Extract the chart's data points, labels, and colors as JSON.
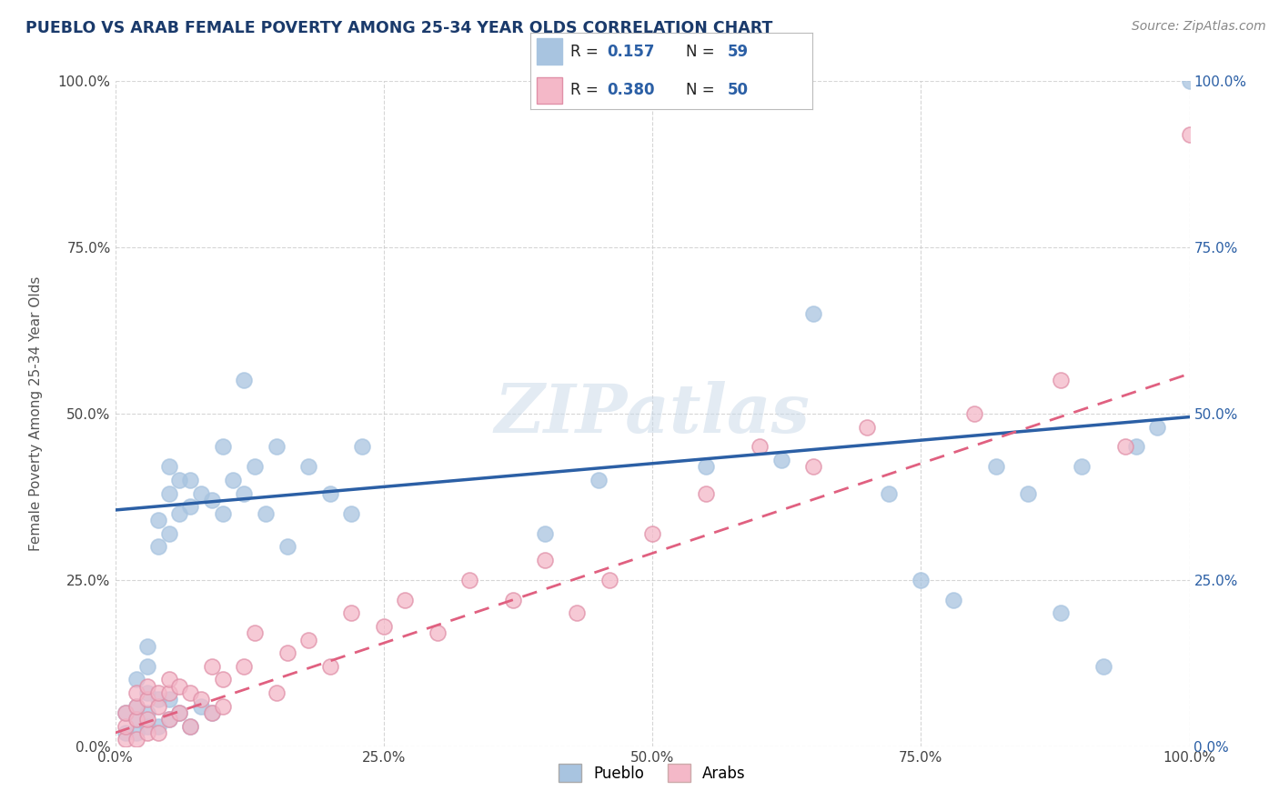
{
  "title": "PUEBLO VS ARAB FEMALE POVERTY AMONG 25-34 YEAR OLDS CORRELATION CHART",
  "source": "Source: ZipAtlas.com",
  "ylabel": "Female Poverty Among 25-34 Year Olds",
  "xlabel": "",
  "pueblo_R": 0.157,
  "pueblo_N": 59,
  "arab_R": 0.38,
  "arab_N": 50,
  "pueblo_color": "#a8c4e0",
  "arab_color": "#f4b8c8",
  "pueblo_line_color": "#2b5fa5",
  "arab_line_color": "#e06080",
  "legend_pueblo": "Pueblo",
  "legend_arab": "Arabs",
  "background_color": "#ffffff",
  "grid_color": "#cccccc",
  "title_color": "#1a3a6b",
  "xlim": [
    0,
    1
  ],
  "ylim": [
    0,
    1
  ],
  "pueblo_line_x0": 0.0,
  "pueblo_line_y0": 0.355,
  "pueblo_line_x1": 1.0,
  "pueblo_line_y1": 0.495,
  "arab_line_x0": 0.0,
  "arab_line_y0": 0.02,
  "arab_line_x1": 1.0,
  "arab_line_y1": 0.56,
  "pueblo_scatter_x": [
    0.01,
    0.01,
    0.02,
    0.02,
    0.02,
    0.02,
    0.03,
    0.03,
    0.03,
    0.03,
    0.03,
    0.04,
    0.04,
    0.04,
    0.04,
    0.05,
    0.05,
    0.05,
    0.05,
    0.05,
    0.06,
    0.06,
    0.06,
    0.07,
    0.07,
    0.07,
    0.08,
    0.08,
    0.09,
    0.09,
    0.1,
    0.1,
    0.11,
    0.12,
    0.12,
    0.13,
    0.14,
    0.15,
    0.16,
    0.18,
    0.2,
    0.22,
    0.23,
    0.4,
    0.45,
    0.55,
    0.62,
    0.65,
    0.72,
    0.75,
    0.78,
    0.82,
    0.85,
    0.88,
    0.9,
    0.92,
    0.95,
    0.97,
    1.0
  ],
  "pueblo_scatter_y": [
    0.02,
    0.05,
    0.02,
    0.04,
    0.06,
    0.1,
    0.03,
    0.05,
    0.08,
    0.12,
    0.15,
    0.03,
    0.07,
    0.3,
    0.34,
    0.04,
    0.07,
    0.32,
    0.38,
    0.42,
    0.05,
    0.35,
    0.4,
    0.03,
    0.36,
    0.4,
    0.06,
    0.38,
    0.05,
    0.37,
    0.35,
    0.45,
    0.4,
    0.38,
    0.55,
    0.42,
    0.35,
    0.45,
    0.3,
    0.42,
    0.38,
    0.35,
    0.45,
    0.32,
    0.4,
    0.42,
    0.43,
    0.65,
    0.38,
    0.25,
    0.22,
    0.42,
    0.38,
    0.2,
    0.42,
    0.12,
    0.45,
    0.48,
    1.0
  ],
  "arab_scatter_x": [
    0.01,
    0.01,
    0.01,
    0.02,
    0.02,
    0.02,
    0.02,
    0.03,
    0.03,
    0.03,
    0.03,
    0.04,
    0.04,
    0.04,
    0.05,
    0.05,
    0.05,
    0.06,
    0.06,
    0.07,
    0.07,
    0.08,
    0.09,
    0.09,
    0.1,
    0.1,
    0.12,
    0.13,
    0.15,
    0.16,
    0.18,
    0.2,
    0.22,
    0.25,
    0.27,
    0.3,
    0.33,
    0.37,
    0.4,
    0.43,
    0.46,
    0.5,
    0.55,
    0.6,
    0.65,
    0.7,
    0.8,
    0.88,
    0.94,
    1.0
  ],
  "arab_scatter_y": [
    0.01,
    0.03,
    0.05,
    0.01,
    0.04,
    0.06,
    0.08,
    0.02,
    0.04,
    0.07,
    0.09,
    0.02,
    0.06,
    0.08,
    0.04,
    0.08,
    0.1,
    0.05,
    0.09,
    0.03,
    0.08,
    0.07,
    0.05,
    0.12,
    0.06,
    0.1,
    0.12,
    0.17,
    0.08,
    0.14,
    0.16,
    0.12,
    0.2,
    0.18,
    0.22,
    0.17,
    0.25,
    0.22,
    0.28,
    0.2,
    0.25,
    0.32,
    0.38,
    0.45,
    0.42,
    0.48,
    0.5,
    0.55,
    0.45,
    0.92
  ],
  "xtick_labels": [
    "0.0%",
    "25.0%",
    "50.0%",
    "75.0%",
    "100.0%"
  ],
  "xtick_positions": [
    0,
    0.25,
    0.5,
    0.75,
    1.0
  ],
  "ytick_labels": [
    "0.0%",
    "25.0%",
    "50.0%",
    "75.0%",
    "100.0%"
  ],
  "ytick_positions": [
    0,
    0.25,
    0.5,
    0.75,
    1.0
  ],
  "right_ytick_labels": [
    "100.0%",
    "75.0%",
    "50.0%",
    "25.0%",
    "0.0%"
  ],
  "right_ytick_label_values": [
    "0.0%",
    "25.0%",
    "50.0%",
    "75.0%",
    "100.0%"
  ],
  "right_ytick_positions": [
    0,
    0.25,
    0.5,
    0.75,
    1.0
  ]
}
